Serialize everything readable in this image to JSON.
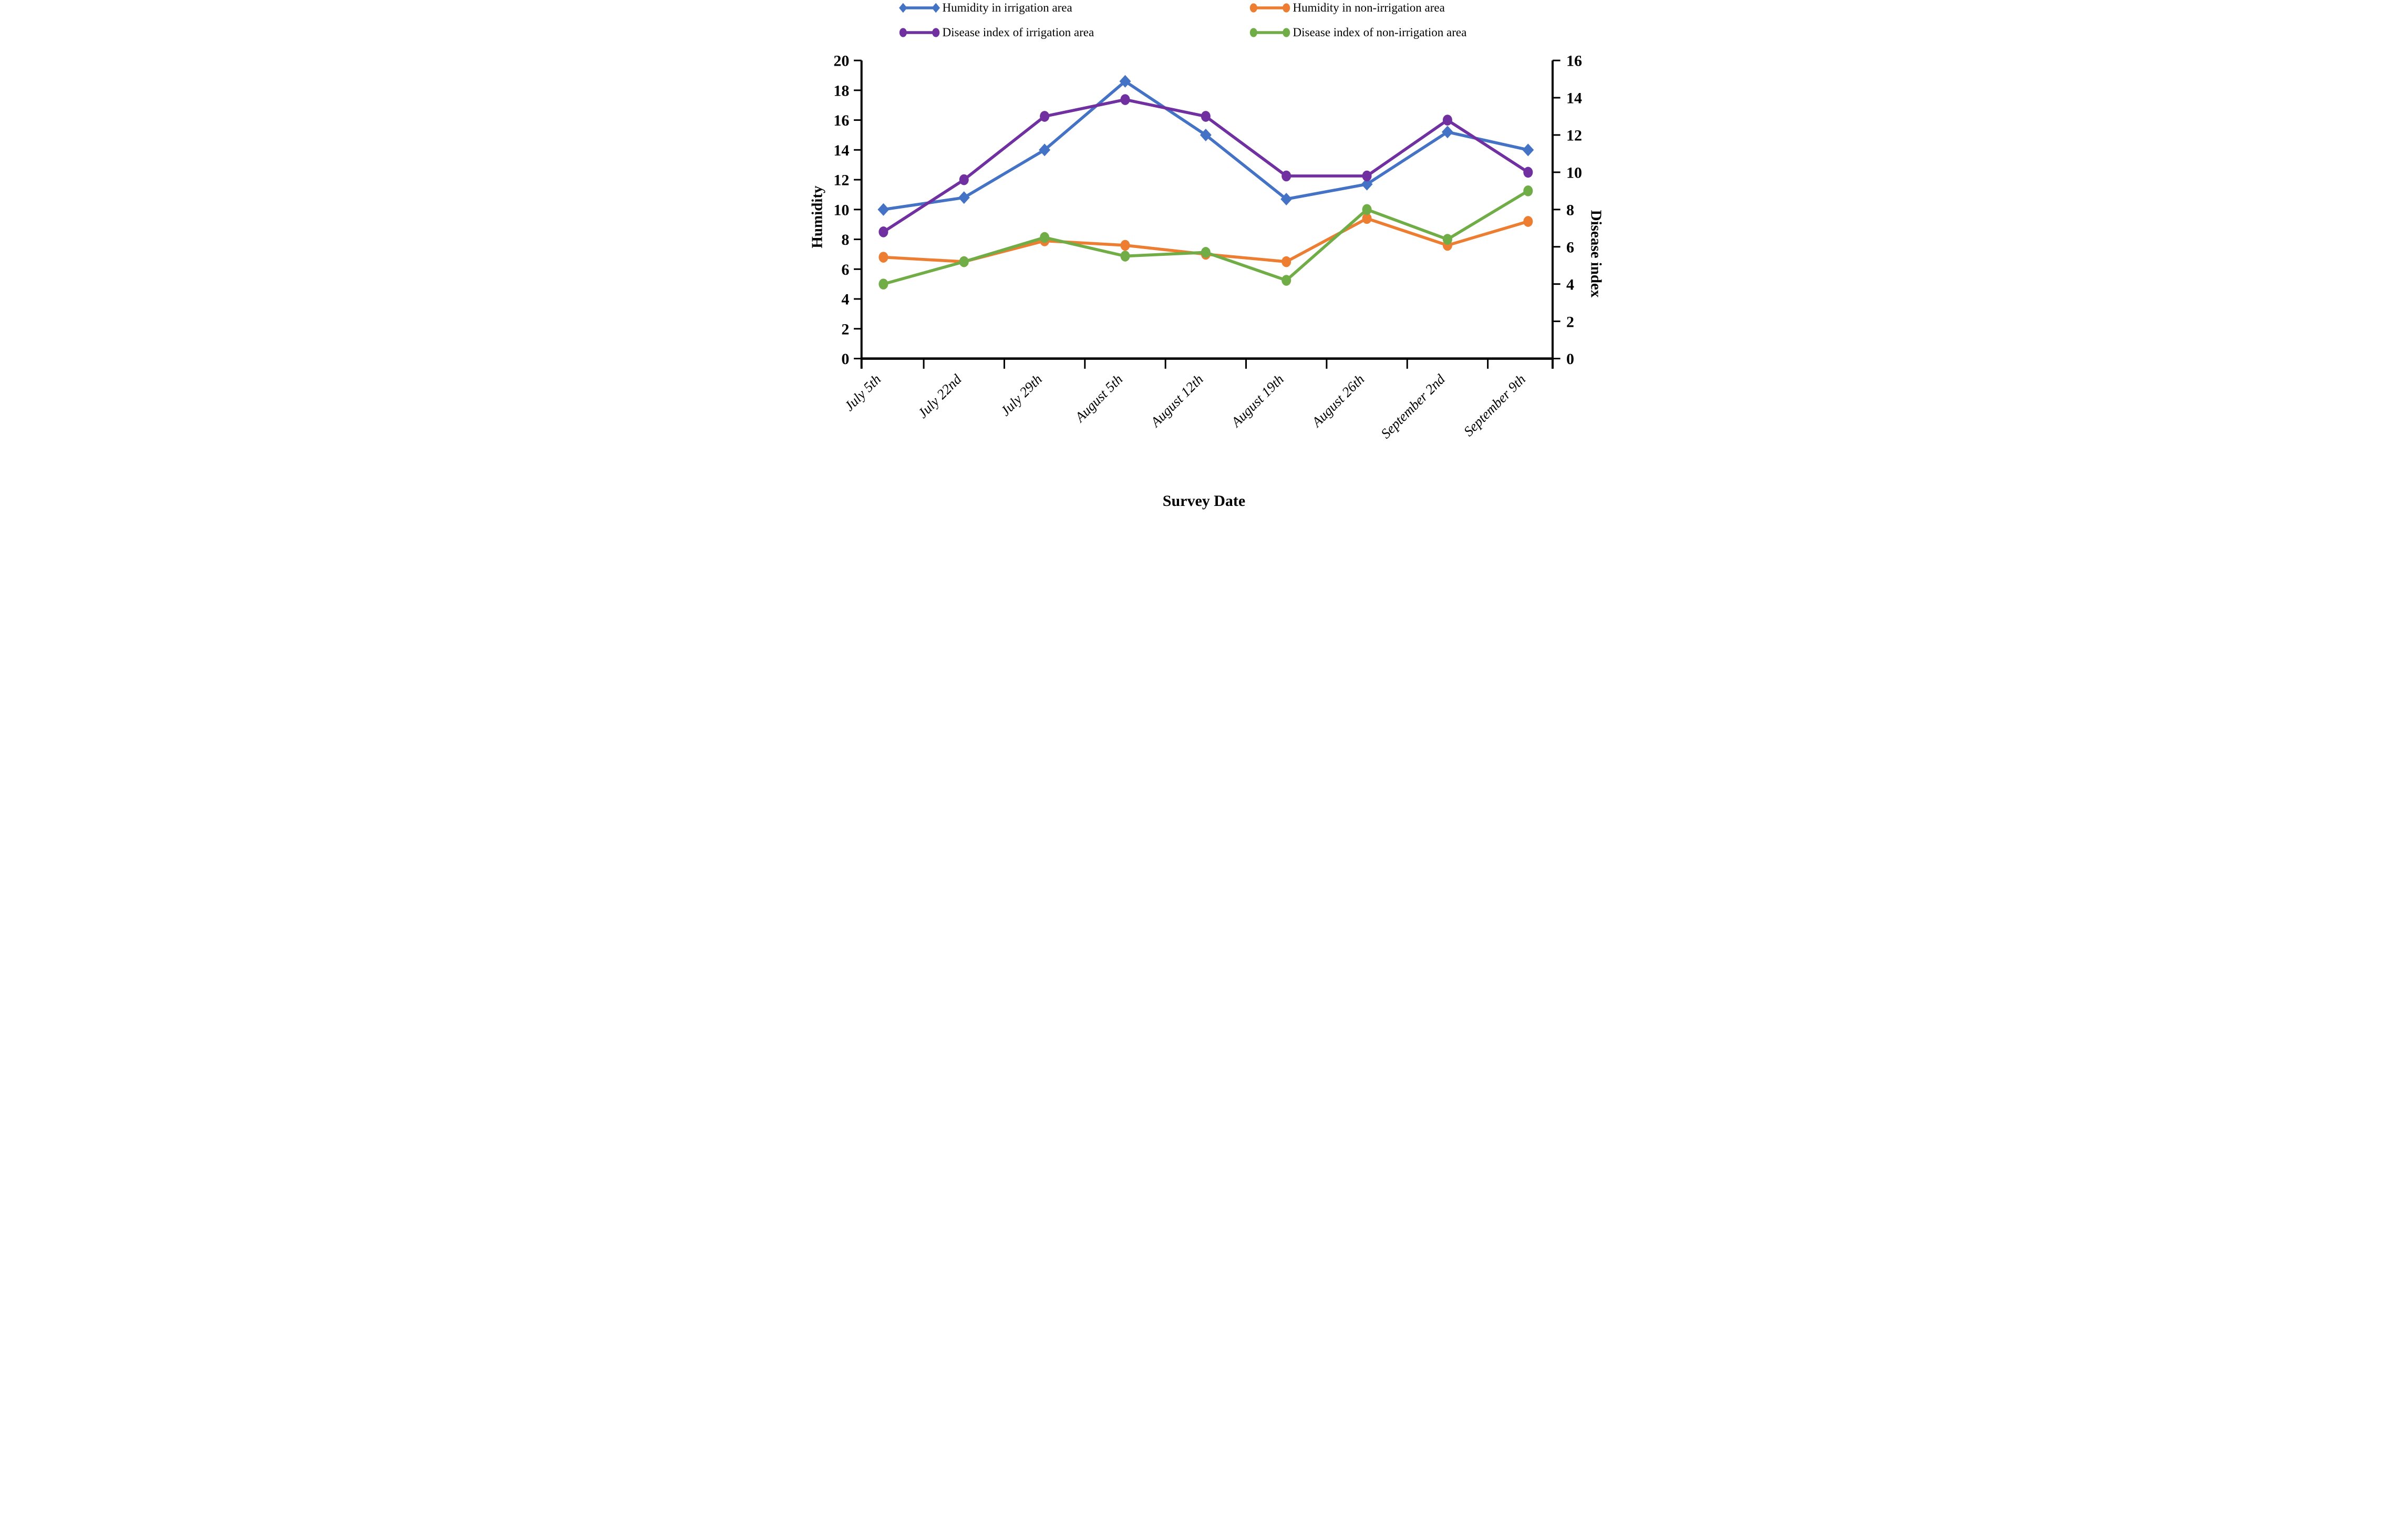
{
  "chart_data": {
    "type": "line",
    "title": "",
    "xlabel": "Survey Date",
    "ylabel": "Humidity",
    "y2label": "Disease index",
    "categories": [
      "July 5th",
      "July 22nd",
      "July 29th",
      "August 5th",
      "August 12th",
      "August 19th",
      "August 26th",
      "September 2nd",
      "September 9th"
    ],
    "left_axis": {
      "min": 0,
      "max": 20,
      "step": 2,
      "ticks": [
        0,
        2,
        4,
        6,
        8,
        10,
        12,
        14,
        16,
        18,
        20
      ]
    },
    "right_axis": {
      "min": 0,
      "max": 16,
      "step": 2,
      "ticks": [
        0,
        2,
        4,
        6,
        8,
        10,
        12,
        14,
        16
      ]
    },
    "grid": false,
    "legend_position": "top",
    "series": [
      {
        "name": "Humidity in irrigation area",
        "color": "#4472C4",
        "axis": "left",
        "marker": "diamond",
        "values": [
          10,
          10.8,
          14,
          18.6,
          15,
          10.7,
          11.7,
          15.2,
          14
        ]
      },
      {
        "name": "Humidity in non-irrigation area",
        "color": "#ED7D31",
        "axis": "left",
        "marker": "circle",
        "values": [
          6.8,
          6.5,
          7.9,
          7.6,
          7.0,
          6.5,
          9.4,
          7.6,
          9.2
        ]
      },
      {
        "name": "Disease index of irrigation area",
        "color": "#7030A0",
        "axis": "right",
        "marker": "circle",
        "values": [
          6.8,
          9.6,
          13,
          13.9,
          13,
          9.8,
          9.8,
          12.8,
          10
        ]
      },
      {
        "name": "Disease index of non-irrigation area",
        "color": "#70AD47",
        "axis": "right",
        "marker": "circle",
        "values": [
          4,
          5.2,
          6.5,
          5.5,
          5.7,
          4.2,
          8,
          6.4,
          9
        ]
      }
    ]
  }
}
